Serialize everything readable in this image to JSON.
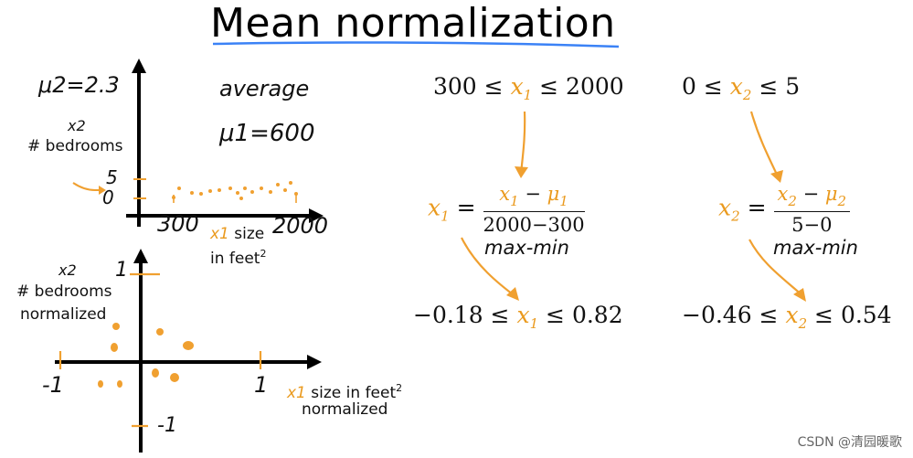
{
  "title": "Mean normalization",
  "top_plot": {
    "y_label_var": "x2",
    "y_label": "# bedrooms",
    "x_label_var": "x1",
    "x_label": "size",
    "x_label_2": "in feet",
    "x_label_2_sup": "2",
    "mu2_note": "μ2=2.3",
    "average_note": "average",
    "mu1_note": "μ1=600",
    "tick_5": "5",
    "tick_0": "0",
    "tick_300": "300",
    "tick_2000": "2000"
  },
  "bottom_plot": {
    "y_label_var": "x2",
    "y_label": "# bedrooms",
    "y_label_2": "normalized",
    "x_label_var": "x1",
    "x_label": "size in feet",
    "x_label_sup": "2",
    "x_label_2": "normalized",
    "tick_pos1_y": "1",
    "tick_neg1_y": "-1",
    "tick_neg1_x": "-1",
    "tick_pos1_x": "1"
  },
  "equations": {
    "range_x1": {
      "left": "300 ≤ ",
      "var": "x",
      "sub": "1",
      "right": " ≤ 2000"
    },
    "range_x2": {
      "left": "0 ≤ ",
      "var": "x",
      "sub": "2",
      "right": " ≤ 5"
    },
    "formula_x1": {
      "lhs_var": "x",
      "lhs_sub": "1",
      "eq": " = ",
      "num_var": "x",
      "num_sub": "1",
      "num_minus": " − ",
      "num_mu": "μ",
      "num_mu_sub": "1",
      "den": "2000−300"
    },
    "formula_x2": {
      "lhs_var": "x",
      "lhs_sub": "2",
      "eq": " = ",
      "num_var": "x",
      "num_sub": "2",
      "num_minus": " − ",
      "num_mu": "μ",
      "num_mu_sub": "2",
      "den": "5−0"
    },
    "maxmin_note_1": "max-min",
    "maxmin_note_2": "max-min",
    "result_x1": {
      "left": "−0.18 ≤ ",
      "var": "x",
      "sub": "1",
      "right": " ≤ 0.82"
    },
    "result_x2": {
      "left": "−0.46 ≤ ",
      "var": "x",
      "sub": "2",
      "right": " ≤ 0.54"
    }
  },
  "watermark": "CSDN @清园暖歌",
  "colors": {
    "accent": "#f0a030",
    "underline": "#3b82f6",
    "ink": "#111111"
  }
}
